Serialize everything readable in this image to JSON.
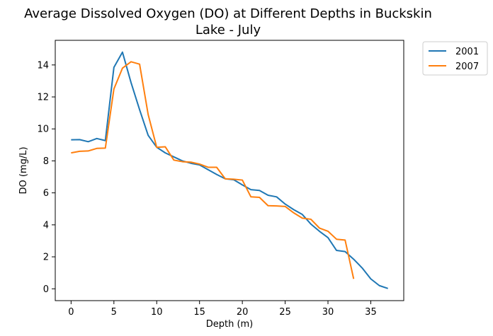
{
  "chart_data": {
    "type": "line",
    "title_lines": [
      "Average Dissolved Oxygen (DO) at Different Depths in Buckskin",
      "Lake - July"
    ],
    "xlabel": "Depth (m)",
    "ylabel": "DO (mg/L)",
    "xlim": [
      -1.85,
      38.85
    ],
    "ylim": [
      -0.74,
      15.54
    ],
    "xticks": [
      0,
      5,
      10,
      15,
      20,
      25,
      30,
      35
    ],
    "yticks": [
      0,
      2,
      4,
      6,
      8,
      10,
      12,
      14
    ],
    "grid": false,
    "legend_position": "outside-top-right",
    "series": [
      {
        "name": "2001",
        "color": "#1f77b4",
        "x": [
          0,
          1,
          2,
          3,
          4,
          5,
          6,
          7,
          8,
          9,
          10,
          11,
          12,
          13,
          14,
          15,
          16,
          17,
          18,
          19,
          20,
          21,
          22,
          23,
          24,
          25,
          26,
          27,
          28,
          29,
          30,
          31,
          32,
          33,
          34,
          35,
          36,
          37
        ],
        "y": [
          9.32,
          9.33,
          9.2,
          9.4,
          9.27,
          13.85,
          14.8,
          12.9,
          11.2,
          9.6,
          8.85,
          8.5,
          8.25,
          8.0,
          7.85,
          7.75,
          7.45,
          7.15,
          6.88,
          6.82,
          6.5,
          6.2,
          6.15,
          5.85,
          5.75,
          5.3,
          4.95,
          4.65,
          4.05,
          3.6,
          3.2,
          2.4,
          2.33,
          1.85,
          1.3,
          0.62,
          0.2,
          0.02
        ]
      },
      {
        "name": "2007",
        "color": "#ff7f0e",
        "x": [
          0,
          1,
          2,
          3,
          4,
          5,
          6,
          7,
          8,
          9,
          10,
          11,
          12,
          13,
          14,
          15,
          16,
          17,
          18,
          19,
          20,
          21,
          22,
          23,
          24,
          25,
          26,
          27,
          28,
          29,
          30,
          31,
          32,
          33
        ],
        "y": [
          8.5,
          8.6,
          8.62,
          8.78,
          8.8,
          12.5,
          13.8,
          14.2,
          14.05,
          10.9,
          8.85,
          8.88,
          8.05,
          7.95,
          7.92,
          7.8,
          7.6,
          7.6,
          6.88,
          6.85,
          6.8,
          5.75,
          5.72,
          5.2,
          5.18,
          5.15,
          4.75,
          4.42,
          4.35,
          3.8,
          3.6,
          3.1,
          3.05,
          0.62
        ]
      }
    ]
  }
}
